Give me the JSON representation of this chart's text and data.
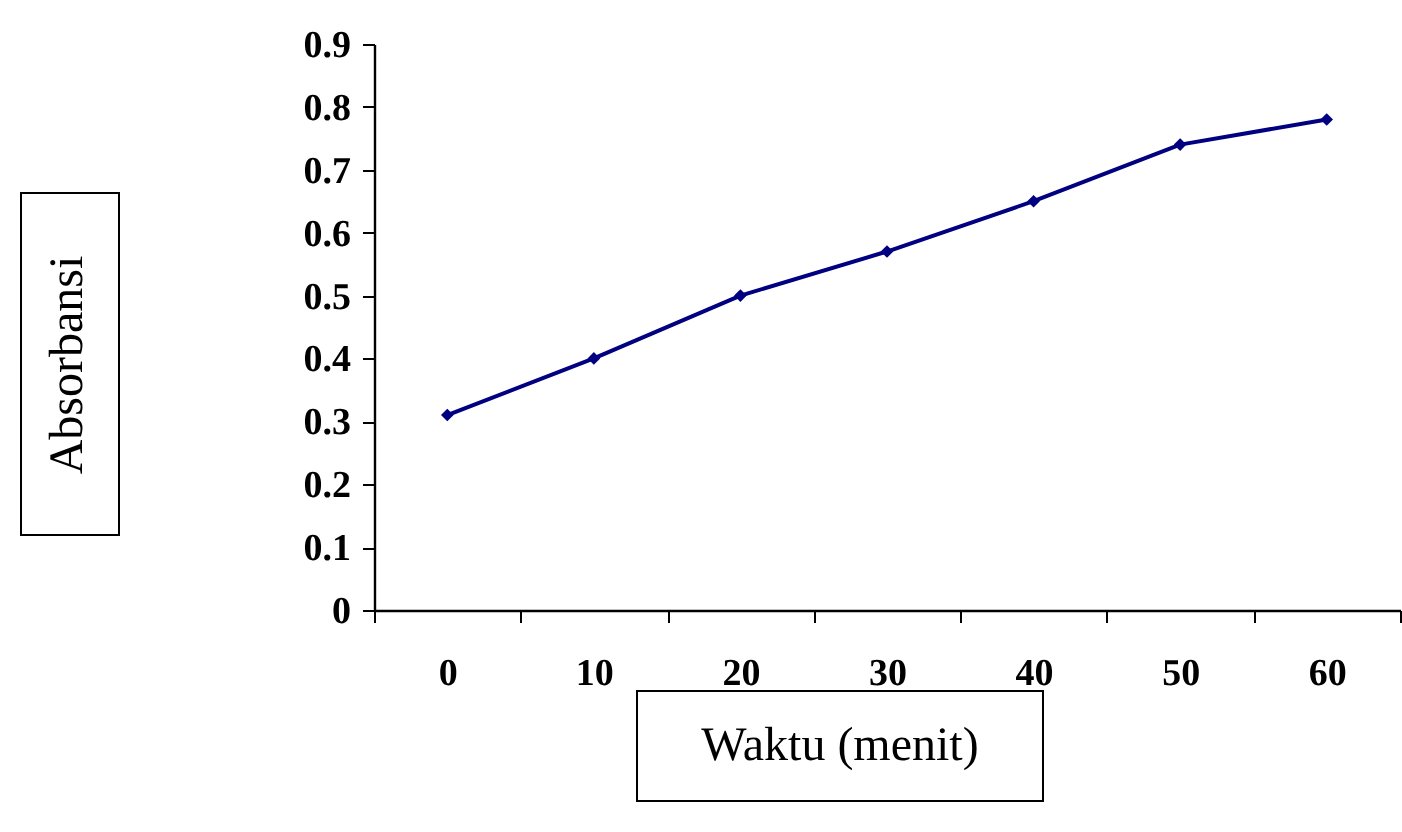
{
  "chart_data": {
    "type": "line",
    "xlabel": "Waktu (menit)",
    "ylabel": "Absorbansi",
    "categories": [
      "0",
      "10",
      "20",
      "30",
      "40",
      "50",
      "60"
    ],
    "series": [
      {
        "color": "#000080",
        "values": [
          0.31,
          0.4,
          0.5,
          0.57,
          0.65,
          0.74,
          0.78
        ]
      }
    ],
    "ylim": [
      0,
      0.9
    ],
    "yticks": [
      0,
      0.1,
      0.2,
      0.3,
      0.4,
      0.5,
      0.6,
      0.7,
      0.8,
      0.9
    ],
    "grid": false,
    "marker": "diamond",
    "line_style": "solid"
  }
}
